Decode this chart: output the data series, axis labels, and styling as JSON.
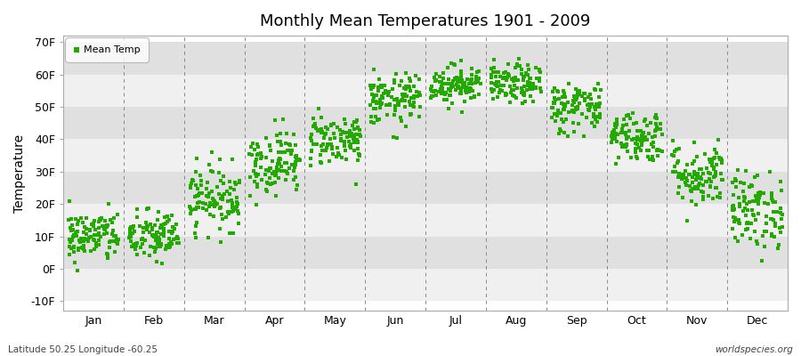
{
  "title": "Monthly Mean Temperatures 1901 - 2009",
  "ylabel": "Temperature",
  "xlabel_labels": [
    "Jan",
    "Feb",
    "Mar",
    "Apr",
    "May",
    "Jun",
    "Jul",
    "Aug",
    "Sep",
    "Oct",
    "Nov",
    "Dec"
  ],
  "ytick_labels": [
    "-10F",
    "0F",
    "10F",
    "20F",
    "30F",
    "40F",
    "50F",
    "60F",
    "70F"
  ],
  "ytick_values": [
    -10,
    0,
    10,
    20,
    30,
    40,
    50,
    60,
    70
  ],
  "ylim": [
    -13,
    72
  ],
  "dot_color": "#22aa00",
  "dot_size": 6,
  "legend_label": "Mean Temp",
  "background_color": "#ffffff",
  "band_color_light": "#f0f0f0",
  "band_color_dark": "#e0e0e0",
  "footer_left": "Latitude 50.25 Longitude -60.25",
  "footer_right": "worldspecies.org",
  "monthly_means": [
    10,
    10,
    22,
    33,
    40,
    52,
    57,
    57,
    50,
    41,
    29,
    18
  ],
  "monthly_spreads": [
    4,
    4,
    5,
    5,
    4,
    4,
    3,
    3,
    4,
    4,
    5,
    6
  ],
  "n_years": 109
}
